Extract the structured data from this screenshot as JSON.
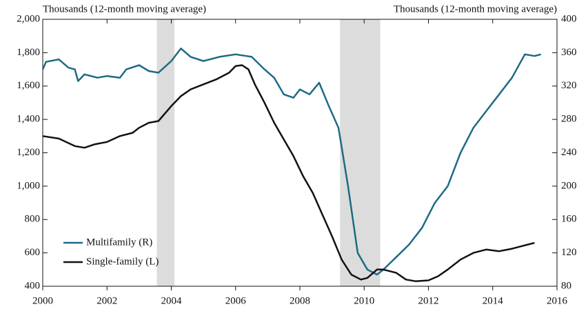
{
  "chart_data": {
    "type": "line",
    "ylabel": "Thousands (12-month moving average)",
    "y2label": "Thousands (12-month moving average)",
    "xlim": [
      2000,
      2016
    ],
    "xticks": [
      2000,
      2002,
      2004,
      2006,
      2008,
      2010,
      2012,
      2014,
      2016
    ],
    "ylim": [
      400,
      2000
    ],
    "yticks": [
      400,
      600,
      800,
      {
        "value": 1000,
        "label": "1,000"
      },
      {
        "value": 1200,
        "label": "1,200"
      },
      {
        "value": 1400,
        "label": "1,400"
      },
      {
        "value": 1600,
        "label": "1,600"
      },
      {
        "value": 1800,
        "label": "1,800"
      },
      {
        "value": 2000,
        "label": "2,000"
      }
    ],
    "y2lim": [
      80,
      400
    ],
    "y2ticks": [
      80,
      120,
      160,
      200,
      240,
      280,
      320,
      360,
      400
    ],
    "shaded_regions": [
      [
        2003.55,
        2004.1
      ],
      [
        2009.25,
        2010.5
      ]
    ],
    "legend": "lower left",
    "series": [
      {
        "name": "Multifamily (R)",
        "color": "#1d6a84",
        "axis": "y2",
        "x": [
          2000.0,
          2000.1,
          2000.5,
          2000.8,
          2001.0,
          2001.1,
          2001.3,
          2001.7,
          2002.0,
          2002.4,
          2002.6,
          2003.0,
          2003.3,
          2003.6,
          2004.0,
          2004.3,
          2004.6,
          2005.0,
          2005.5,
          2006.0,
          2006.5,
          2006.9,
          2007.2,
          2007.5,
          2007.8,
          2008.0,
          2008.3,
          2008.6,
          2008.9,
          2009.2,
          2009.5,
          2009.8,
          2010.1,
          2010.4,
          2010.6,
          2011.0,
          2011.4,
          2011.8,
          2012.2,
          2012.6,
          2013.0,
          2013.4,
          2013.8,
          2014.2,
          2014.6,
          2015.0,
          2015.3,
          2015.5
        ],
        "values": [
          340,
          349,
          352,
          342,
          340,
          326,
          334,
          330,
          332,
          330,
          340,
          345,
          338,
          336,
          350,
          365,
          355,
          350,
          355,
          358,
          355,
          340,
          330,
          310,
          306,
          316,
          310,
          324,
          296,
          270,
          200,
          120,
          100,
          94,
          100,
          115,
          130,
          150,
          180,
          200,
          240,
          270,
          290,
          310,
          330,
          358,
          356,
          358
        ]
      },
      {
        "name": "Single-family (L)",
        "color": "#111111",
        "x": [
          2000.0,
          2000.5,
          2001.0,
          2001.3,
          2001.6,
          2002.0,
          2002.4,
          2002.8,
          2003.0,
          2003.3,
          2003.6,
          2004.0,
          2004.3,
          2004.6,
          2005.0,
          2005.4,
          2005.8,
          2006.0,
          2006.2,
          2006.4,
          2006.6,
          2006.9,
          2007.2,
          2007.5,
          2007.8,
          2008.1,
          2008.4,
          2008.7,
          2009.0,
          2009.3,
          2009.6,
          2009.9,
          2010.1,
          2010.4,
          2010.6,
          2011.0,
          2011.3,
          2011.6,
          2012.0,
          2012.3,
          2012.6,
          2013.0,
          2013.4,
          2013.8,
          2014.2,
          2014.6,
          2015.0,
          2015.3
        ],
        "values": [
          1300,
          1285,
          1240,
          1230,
          1250,
          1265,
          1300,
          1320,
          1350,
          1380,
          1390,
          1480,
          1540,
          1580,
          1610,
          1640,
          1680,
          1720,
          1725,
          1700,
          1610,
          1500,
          1380,
          1280,
          1180,
          1060,
          960,
          830,
          700,
          560,
          470,
          440,
          450,
          500,
          500,
          480,
          440,
          430,
          435,
          460,
          500,
          560,
          600,
          620,
          610,
          625,
          645,
          660
        ]
      }
    ]
  }
}
